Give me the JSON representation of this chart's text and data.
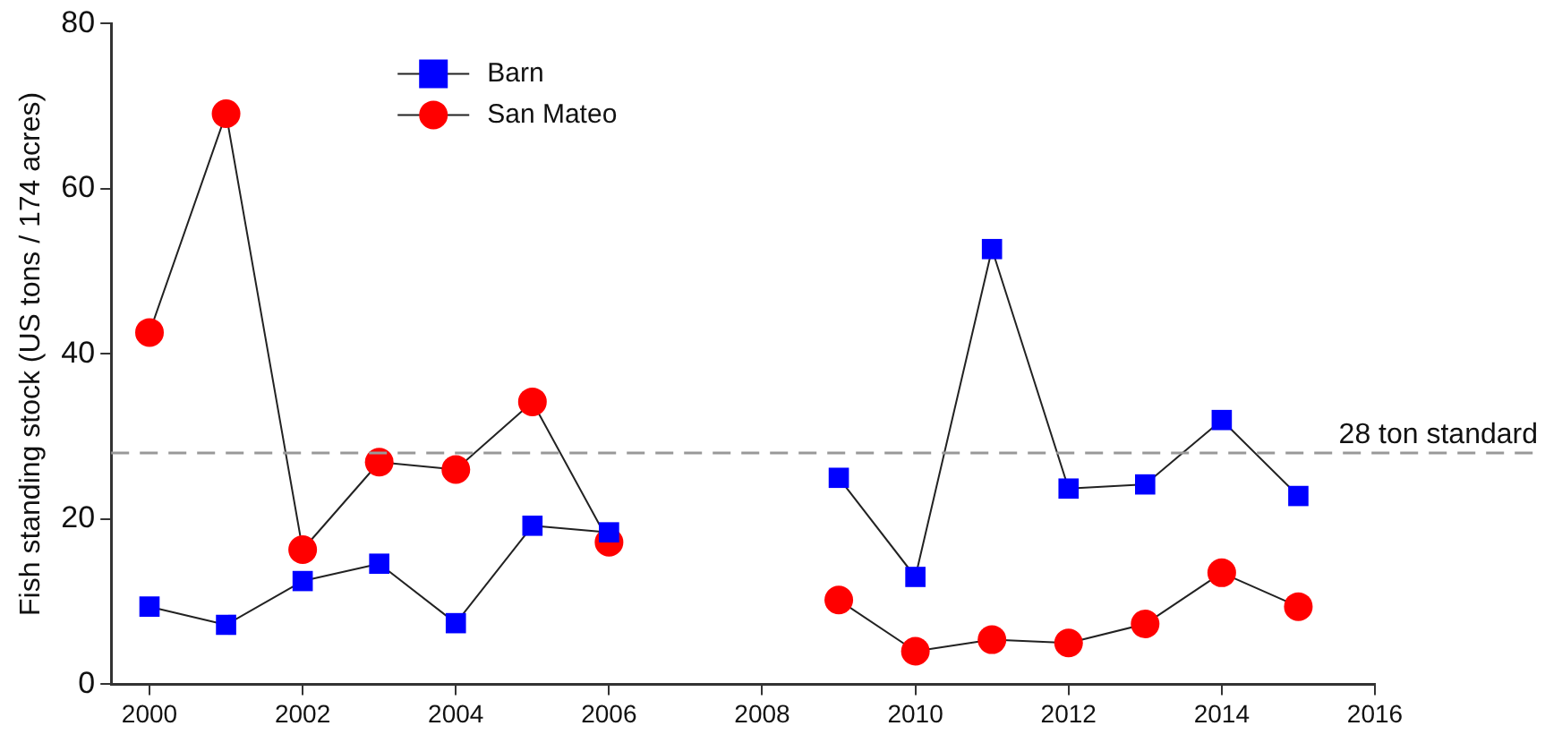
{
  "chart_data": {
    "type": "line",
    "ylabel": "Fish standing stock (US tons / 174 acres)",
    "x": [
      2000,
      2001,
      2002,
      2003,
      2004,
      2005,
      2006,
      2007,
      2008,
      2009,
      2010,
      2011,
      2012,
      2013,
      2014,
      2015
    ],
    "series": [
      {
        "name": "Barn",
        "color": "#0000ff",
        "marker": "square",
        "values": [
          9.4,
          7.2,
          12.5,
          14.6,
          7.4,
          19.2,
          18.4,
          null,
          null,
          25.0,
          13.0,
          52.7,
          23.7,
          24.2,
          32.0,
          22.8
        ]
      },
      {
        "name": "San Mateo",
        "color": "#ff0000",
        "marker": "circle",
        "values": [
          42.6,
          69.1,
          16.3,
          26.9,
          26.0,
          34.2,
          17.2,
          null,
          null,
          10.2,
          4.0,
          5.4,
          5.0,
          7.3,
          13.5,
          9.4
        ]
      }
    ],
    "xlim": [
      1999.5,
      2016
    ],
    "xticks": [
      2000,
      2002,
      2004,
      2006,
      2008,
      2010,
      2012,
      2014,
      2016
    ],
    "ylim": [
      0,
      80
    ],
    "yticks": [
      0,
      20,
      40,
      60,
      80
    ],
    "ref_lines": [
      {
        "axis": "y",
        "value": 28,
        "label": "28 ton standard",
        "color": "#999999",
        "line_style": "dashed"
      }
    ],
    "grid": false,
    "legend": "top",
    "line_style": "solid"
  }
}
